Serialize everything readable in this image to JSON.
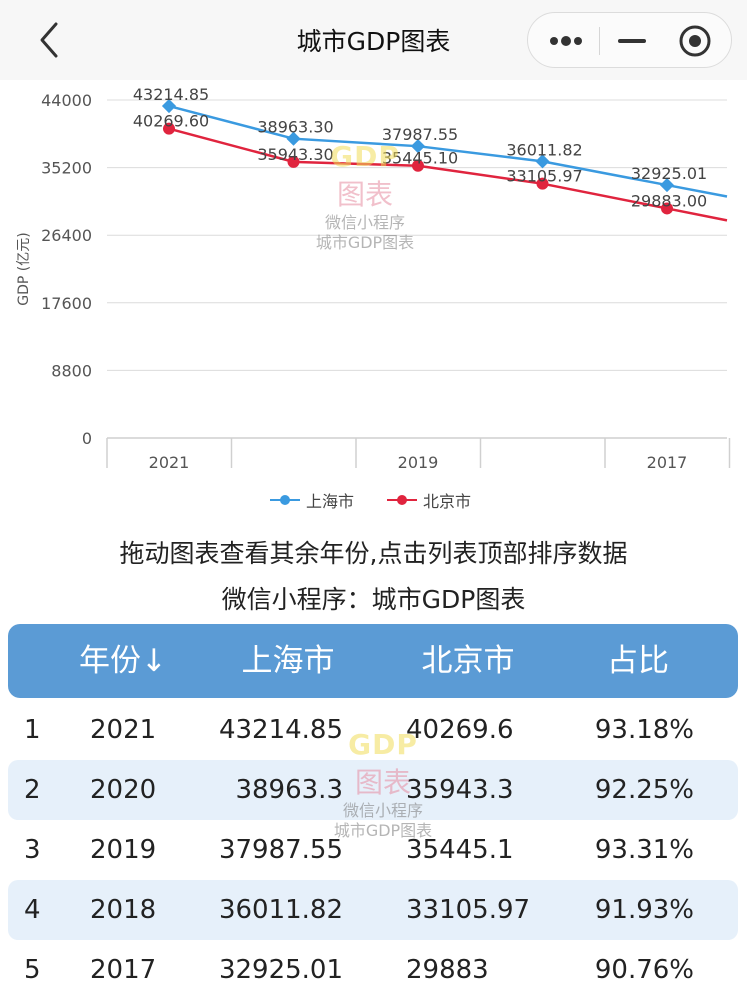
{
  "header": {
    "title": "城市GDP图表"
  },
  "chart_data": {
    "type": "line",
    "ylabel": "GDP (亿元)",
    "yticks": [
      "44000",
      "35200",
      "26400",
      "17600",
      "8800",
      "0"
    ],
    "ylim": [
      0,
      44000
    ],
    "categories": [
      "2021",
      "2020",
      "2019",
      "2018",
      "2017"
    ],
    "xtick_labels": [
      "2021",
      "",
      "2019",
      "",
      "2017"
    ],
    "grid": true,
    "legend_position": "bottom",
    "series": [
      {
        "name": "上海市",
        "color": "#3a9ae0",
        "values": [
          43214.85,
          38963.3,
          37987.55,
          36011.82,
          32925.01
        ],
        "labels": [
          "43214.85",
          "38963.30",
          "37987.55",
          "36011.82",
          "32925.01"
        ]
      },
      {
        "name": "北京市",
        "color": "#e0243e",
        "values": [
          40269.6,
          35943.3,
          35445.1,
          33105.97,
          29883
        ],
        "labels": [
          "40269.60",
          "35943.30",
          "35445.10",
          "33105.97",
          "29883.00"
        ]
      }
    ]
  },
  "tips": {
    "line1": "拖动图表查看其余年份,点击列表顶部排序数据",
    "line2": "微信小程序：城市GDP图表"
  },
  "watermark": {
    "top": "GDP",
    "middle": "图表",
    "line1": "微信小程序",
    "line2": "城市GDP图表"
  },
  "table": {
    "headers": [
      "年份↓",
      "上海市",
      "北京市",
      "占比"
    ],
    "rows": [
      {
        "index": "1",
        "year": "2021",
        "shanghai": "43214.85",
        "beijing": "40269.6",
        "ratio": "93.18%"
      },
      {
        "index": "2",
        "year": "2020",
        "shanghai": "38963.3",
        "beijing": "35943.3",
        "ratio": "92.25%"
      },
      {
        "index": "3",
        "year": "2019",
        "shanghai": "37987.55",
        "beijing": "35445.1",
        "ratio": "93.31%"
      },
      {
        "index": "4",
        "year": "2018",
        "shanghai": "36011.82",
        "beijing": "33105.97",
        "ratio": "91.93%"
      },
      {
        "index": "5",
        "year": "2017",
        "shanghai": "32925.01",
        "beijing": "29883",
        "ratio": "90.76%"
      }
    ]
  }
}
